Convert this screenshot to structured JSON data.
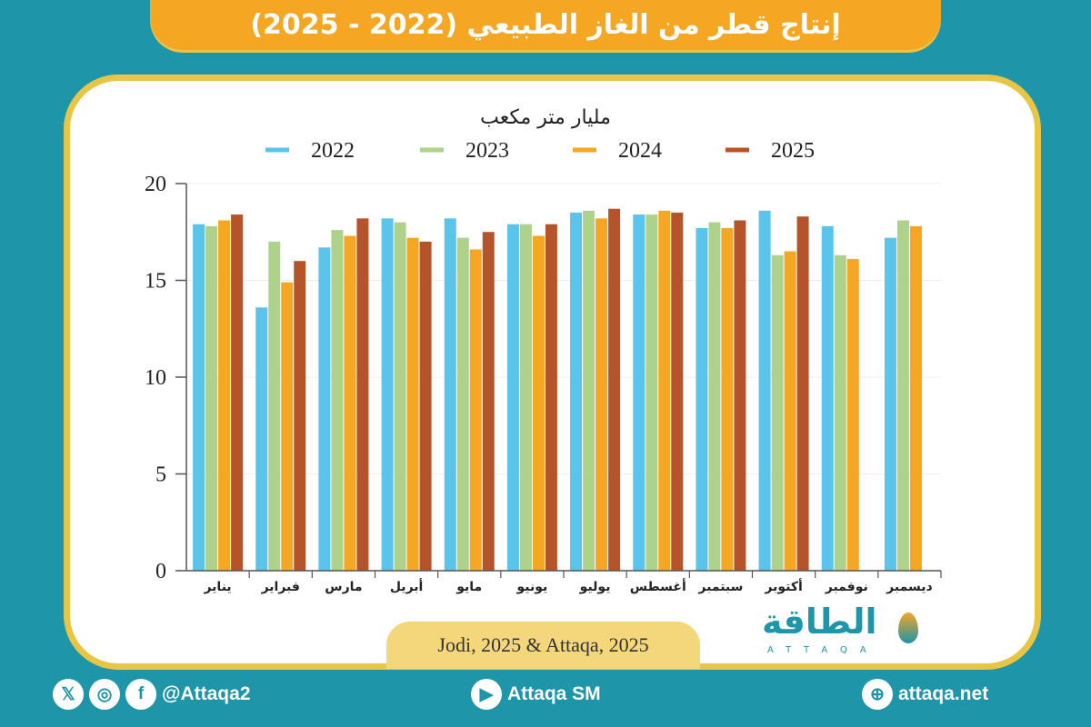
{
  "title": "إنتاج قطر من الغاز الطبيعي (2022 - 2025)",
  "source": "Jodi, 2025 & Attaqa, 2025",
  "logo": {
    "arabic": "الطاقة",
    "latin": "ATTAQA"
  },
  "footer": {
    "social_handle": "@Attaqa2",
    "youtube": "Attaqa SM",
    "website": "attaqa.net",
    "icons": [
      "x-icon",
      "instagram-icon",
      "facebook-icon",
      "youtube-icon",
      "globe-icon"
    ]
  },
  "colors": {
    "background": "#1e95a8",
    "title_pill": "#f5a623",
    "border": "#e8c545"
  },
  "chart_data": {
    "type": "bar",
    "title": "مليار متر مكعب",
    "ylim": [
      0,
      20
    ],
    "yticks": [
      0,
      5,
      10,
      15,
      20
    ],
    "ytick_labels": [
      "0",
      "5",
      "10",
      "15",
      "20"
    ],
    "grid": true,
    "legend_placement": "top",
    "categories": [
      "يناير",
      "فبراير",
      "مارس",
      "أبريل",
      "مايو",
      "يونيو",
      "يوليو",
      "أغسطس",
      "سبتمبر",
      "أكتوبر",
      "نوفمبر",
      "ديسمبر"
    ],
    "series": [
      {
        "name": "2022",
        "color": "#5bc4ea",
        "values": [
          17.9,
          13.6,
          16.7,
          18.2,
          18.2,
          17.9,
          18.5,
          18.4,
          17.7,
          18.6,
          17.8,
          17.2
        ]
      },
      {
        "name": "2023",
        "color": "#aed18c",
        "values": [
          17.8,
          17.0,
          17.6,
          18.0,
          17.2,
          17.9,
          18.6,
          18.4,
          18.0,
          16.3,
          16.3,
          18.1
        ]
      },
      {
        "name": "2024",
        "color": "#f5a623",
        "values": [
          18.1,
          14.9,
          17.3,
          17.2,
          16.6,
          17.3,
          18.2,
          18.6,
          17.7,
          16.5,
          16.1,
          17.8
        ]
      },
      {
        "name": "2025",
        "color": "#b5532a",
        "values": [
          18.4,
          16.0,
          18.2,
          17.0,
          17.5,
          17.9,
          18.7,
          18.5,
          18.1,
          18.3,
          null,
          null
        ]
      }
    ]
  }
}
